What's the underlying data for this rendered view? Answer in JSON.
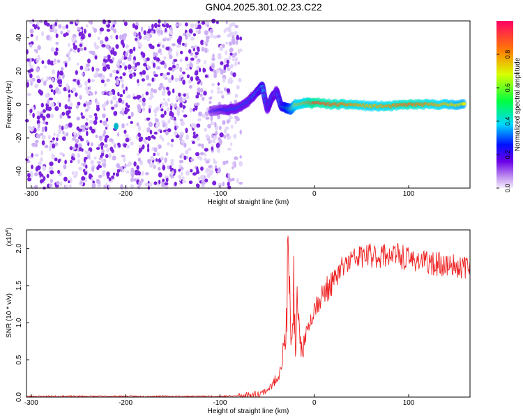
{
  "title": "GN04.2025.301.02.23.C22",
  "colors": {
    "snr_line": "#ee2222",
    "axis": "#000000",
    "background": "#ffffff",
    "noise_dark": "#7a22dd",
    "noise_light": "#cdb0f5"
  },
  "chart_data": [
    {
      "type": "heatmap",
      "xlabel": "Height of straight line (km)",
      "ylabel": "Frequency (Hz)",
      "xlim": [
        -305,
        165
      ],
      "ylim": [
        -50,
        50
      ],
      "xticks": [
        -300,
        -200,
        -100,
        0,
        100
      ],
      "yticks": [
        -40,
        -20,
        0,
        20,
        40
      ],
      "grid": false,
      "noise_region_x": [
        -305,
        -80
      ],
      "track": {
        "x": [
          -110,
          -100,
          -90,
          -80,
          -70,
          -60,
          -55,
          -50,
          -45,
          -40,
          -35,
          -30,
          -25,
          -20,
          -10,
          0,
          20,
          40,
          60,
          80,
          100,
          120,
          140,
          160
        ],
        "freq": [
          -4,
          -3,
          -3,
          -2,
          2,
          8,
          11,
          -3,
          4,
          8,
          -1,
          -2,
          -3,
          0,
          1,
          1,
          0,
          0,
          -1,
          -1,
          0,
          0,
          0,
          0
        ],
        "amplitude": [
          0.2,
          0.25,
          0.3,
          0.3,
          0.3,
          0.35,
          0.4,
          0.3,
          0.35,
          0.3,
          0.4,
          0.5,
          0.6,
          0.75,
          0.8,
          0.9,
          0.85,
          0.8,
          0.75,
          0.8,
          0.85,
          0.8,
          0.75,
          0.7
        ]
      },
      "spot": {
        "x": -210,
        "freq": -13
      },
      "colorbar": {
        "label": "Normalized spectral amplitude",
        "ticks": [
          "0.0",
          "0.2",
          "0.4",
          "0.6",
          "0.8"
        ],
        "range": [
          0,
          1
        ]
      }
    },
    {
      "type": "line",
      "xlabel": "Height of straight line (km)",
      "ylabel": "SNR (10 * v/v)",
      "y_multiplier": "(x10",
      "y_multiplier_exp": "4",
      "y_multiplier_close": ")",
      "xlim": [
        -305,
        165
      ],
      "ylim": [
        0,
        2.25
      ],
      "xticks": [
        -300,
        -200,
        -100,
        0,
        100
      ],
      "yticks": [
        "0.0",
        "0.5",
        "1.0",
        "1.5",
        "2.0"
      ],
      "grid": false,
      "series": [
        {
          "x": [
            -305,
            -250,
            -200,
            -150,
            -100,
            -70,
            -60,
            -55,
            -50,
            -45,
            -40,
            -35,
            -30,
            -28,
            -26,
            -24,
            -22,
            -20,
            -18,
            -15,
            -10,
            -5,
            0,
            10,
            20,
            30,
            40,
            50,
            60,
            80,
            90,
            100,
            110,
            120,
            140,
            160,
            165
          ],
          "y": [
            0.01,
            0.01,
            0.01,
            0.01,
            0.01,
            0.02,
            0.04,
            0.06,
            0.1,
            0.15,
            0.25,
            0.45,
            0.8,
            1.8,
            1.3,
            0.6,
            1.6,
            0.5,
            1.2,
            0.6,
            0.8,
            1.0,
            1.2,
            1.4,
            1.55,
            1.75,
            1.85,
            1.9,
            1.9,
            1.92,
            1.9,
            1.85,
            1.85,
            1.8,
            1.78,
            1.75,
            1.72
          ]
        }
      ]
    }
  ]
}
